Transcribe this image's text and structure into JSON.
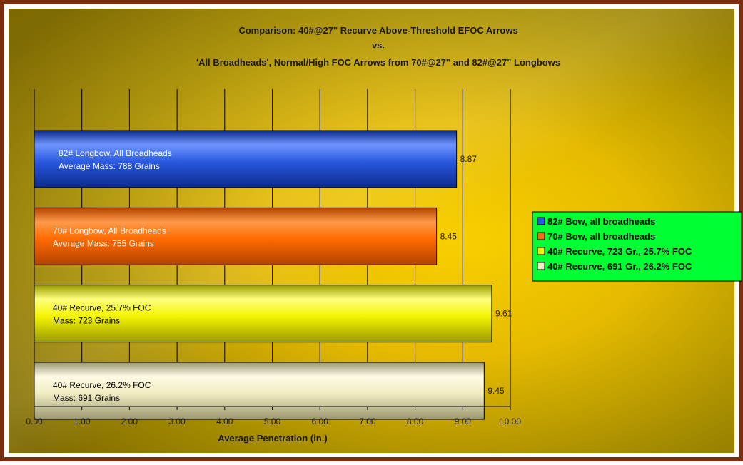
{
  "colors": {
    "border": "#7a2e0e",
    "bg_center": "#f3c60a",
    "bg_edge": "#7d6900",
    "legend_bg": "#00ff33"
  },
  "chart_data": {
    "type": "bar",
    "orientation": "horizontal",
    "title_lines": [
      "Comparison: 40#@27\" Recurve Above-Threshold EFOC Arrows",
      "vs.",
      "'All Broadheads', Normal/High FOC Arrows from 70#@27\" and 82#@27\" Longbows"
    ],
    "xlabel": "Average Penetration (in.)",
    "ylabel": "",
    "xlim": [
      0,
      10
    ],
    "xticks": [
      "0.00",
      "1.00",
      "2.00",
      "3.00",
      "4.00",
      "5.00",
      "6.00",
      "7.00",
      "8.00",
      "9.00",
      "10.00"
    ],
    "grid": "vertical",
    "legend_position": "right",
    "series": [
      {
        "name": "82# Bow, all broadheads",
        "value": 8.87,
        "value_label": "8.87",
        "bar_text": [
          "82# Longbow, All Broadheads",
          "Average Mass: 788 Grains"
        ],
        "color": "#2a59e0",
        "color_dark": "#0b2a8a",
        "color_light": "#6f95ff",
        "text_color": "#ffffff"
      },
      {
        "name": "70# Bow, all broadheads",
        "value": 8.45,
        "value_label": "8.45",
        "bar_text": [
          "70# Longbow, All Broadheads",
          "Average Mass: 755 Grains"
        ],
        "color": "#ff6a00",
        "color_dark": "#b34300",
        "color_light": "#ff9a4a",
        "text_color": "#ffffff"
      },
      {
        "name": "40# Recurve, 723 Gr., 25.7% FOC",
        "value": 9.61,
        "value_label": "9.61",
        "bar_text": [
          "40# Recurve, 25.7% FOC",
          "Mass: 723 Grains"
        ],
        "color": "#f4f400",
        "color_dark": "#9a9a00",
        "color_light": "#ffff80",
        "text_color": "#000000"
      },
      {
        "name": "40# Recurve, 691 Gr., 26.2% FOC",
        "value": 9.45,
        "value_label": "9.45",
        "bar_text": [
          "40# Recurve, 26.2% FOC",
          "Mass: 691 Grains"
        ],
        "color": "#f0ecc0",
        "color_dark": "#9a9670",
        "color_light": "#fffbe6",
        "text_color": "#000000"
      }
    ]
  }
}
